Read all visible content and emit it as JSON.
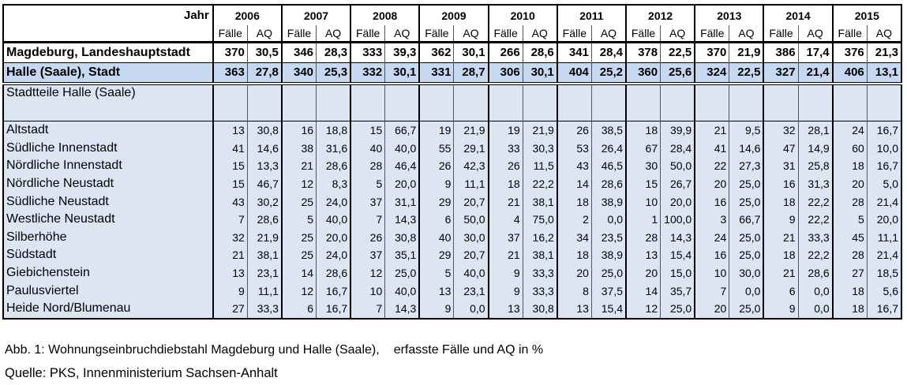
{
  "header": {
    "jahr_label": "Jahr",
    "years": [
      "2006",
      "2007",
      "2008",
      "2009",
      "2010",
      "2011",
      "2012",
      "2013",
      "2014",
      "2015"
    ],
    "sub_faelle": "Fälle",
    "sub_aq": "AQ"
  },
  "cities": [
    {
      "name": "Magdeburg, Landeshauptstadt",
      "values": [
        [
          "370",
          "30,5"
        ],
        [
          "346",
          "28,3"
        ],
        [
          "333",
          "39,3"
        ],
        [
          "362",
          "30,1"
        ],
        [
          "266",
          "28,6"
        ],
        [
          "341",
          "28,4"
        ],
        [
          "378",
          "22,5"
        ],
        [
          "370",
          "21,9"
        ],
        [
          "386",
          "17,4"
        ],
        [
          "376",
          "21,3"
        ]
      ]
    },
    {
      "name": "Halle (Saale), Stadt",
      "values": [
        [
          "363",
          "27,8"
        ],
        [
          "340",
          "25,3"
        ],
        [
          "332",
          "30,1"
        ],
        [
          "331",
          "28,7"
        ],
        [
          "306",
          "30,1"
        ],
        [
          "404",
          "25,2"
        ],
        [
          "360",
          "25,6"
        ],
        [
          "324",
          "22,5"
        ],
        [
          "327",
          "21,4"
        ],
        [
          "406",
          "13,1"
        ]
      ]
    }
  ],
  "section_title": "Stadtteile Halle (Saale)",
  "districts": [
    {
      "name": "Altstadt",
      "values": [
        [
          "13",
          "30,8"
        ],
        [
          "16",
          "18,8"
        ],
        [
          "15",
          "66,7"
        ],
        [
          "19",
          "21,9"
        ],
        [
          "19",
          "21,9"
        ],
        [
          "26",
          "38,5"
        ],
        [
          "18",
          "39,9"
        ],
        [
          "21",
          "9,5"
        ],
        [
          "32",
          "28,1"
        ],
        [
          "24",
          "16,7"
        ]
      ]
    },
    {
      "name": "Südliche Innenstadt",
      "values": [
        [
          "41",
          "14,6"
        ],
        [
          "38",
          "31,6"
        ],
        [
          "40",
          "40,0"
        ],
        [
          "55",
          "29,1"
        ],
        [
          "33",
          "30,3"
        ],
        [
          "53",
          "26,4"
        ],
        [
          "67",
          "28,4"
        ],
        [
          "41",
          "14,6"
        ],
        [
          "47",
          "14,9"
        ],
        [
          "60",
          "10,0"
        ]
      ]
    },
    {
      "name": "Nördliche Innenstadt",
      "values": [
        [
          "15",
          "13,3"
        ],
        [
          "21",
          "28,6"
        ],
        [
          "28",
          "46,4"
        ],
        [
          "26",
          "42,3"
        ],
        [
          "26",
          "11,5"
        ],
        [
          "43",
          "46,5"
        ],
        [
          "30",
          "50,0"
        ],
        [
          "22",
          "27,3"
        ],
        [
          "31",
          "25,8"
        ],
        [
          "18",
          "16,7"
        ]
      ]
    },
    {
      "name": "Nördliche Neustadt",
      "values": [
        [
          "15",
          "46,7"
        ],
        [
          "12",
          "8,3"
        ],
        [
          "5",
          "20,0"
        ],
        [
          "9",
          "11,1"
        ],
        [
          "18",
          "22,2"
        ],
        [
          "14",
          "28,6"
        ],
        [
          "15",
          "26,7"
        ],
        [
          "20",
          "25,0"
        ],
        [
          "16",
          "31,3"
        ],
        [
          "20",
          "5,0"
        ]
      ]
    },
    {
      "name": "Südliche Neustadt",
      "values": [
        [
          "43",
          "30,2"
        ],
        [
          "25",
          "24,0"
        ],
        [
          "37",
          "31,1"
        ],
        [
          "29",
          "20,7"
        ],
        [
          "21",
          "38,1"
        ],
        [
          "18",
          "38,9"
        ],
        [
          "10",
          "20,0"
        ],
        [
          "16",
          "25,0"
        ],
        [
          "18",
          "22,2"
        ],
        [
          "28",
          "21,4"
        ]
      ]
    },
    {
      "name": "Westliche Neustadt",
      "values": [
        [
          "7",
          "28,6"
        ],
        [
          "5",
          "40,0"
        ],
        [
          "7",
          "14,3"
        ],
        [
          "6",
          "50,0"
        ],
        [
          "4",
          "75,0"
        ],
        [
          "2",
          "0,0"
        ],
        [
          "1",
          "100,0"
        ],
        [
          "3",
          "66,7"
        ],
        [
          "9",
          "22,2"
        ],
        [
          "5",
          "20,0"
        ]
      ]
    },
    {
      "name": "Silberhöhe",
      "values": [
        [
          "32",
          "21,9"
        ],
        [
          "25",
          "20,0"
        ],
        [
          "26",
          "30,8"
        ],
        [
          "40",
          "30,0"
        ],
        [
          "37",
          "16,2"
        ],
        [
          "34",
          "23,5"
        ],
        [
          "28",
          "14,3"
        ],
        [
          "24",
          "25,0"
        ],
        [
          "21",
          "33,3"
        ],
        [
          "45",
          "11,1"
        ]
      ]
    },
    {
      "name": "Südstadt",
      "values": [
        [
          "21",
          "38,1"
        ],
        [
          "25",
          "24,0"
        ],
        [
          "37",
          "35,1"
        ],
        [
          "29",
          "20,7"
        ],
        [
          "21",
          "38,1"
        ],
        [
          "18",
          "38,9"
        ],
        [
          "13",
          "15,4"
        ],
        [
          "16",
          "25,0"
        ],
        [
          "18",
          "22,2"
        ],
        [
          "28",
          "21,4"
        ]
      ]
    },
    {
      "name": "Giebichenstein",
      "values": [
        [
          "13",
          "23,1"
        ],
        [
          "14",
          "28,6"
        ],
        [
          "12",
          "25,0"
        ],
        [
          "5",
          "40,0"
        ],
        [
          "9",
          "33,3"
        ],
        [
          "20",
          "25,0"
        ],
        [
          "20",
          "15,0"
        ],
        [
          "10",
          "30,0"
        ],
        [
          "21",
          "28,6"
        ],
        [
          "27",
          "18,5"
        ]
      ]
    },
    {
      "name": "Paulusviertel",
      "values": [
        [
          "9",
          "11,1"
        ],
        [
          "12",
          "16,7"
        ],
        [
          "10",
          "40,0"
        ],
        [
          "13",
          "23,1"
        ],
        [
          "9",
          "33,3"
        ],
        [
          "8",
          "37,5"
        ],
        [
          "14",
          "35,7"
        ],
        [
          "7",
          "0,0"
        ],
        [
          "6",
          "0,0"
        ],
        [
          "18",
          "5,6"
        ]
      ]
    },
    {
      "name": "Heide Nord/Blumenau",
      "values": [
        [
          "27",
          "33,3"
        ],
        [
          "6",
          "16,7"
        ],
        [
          "7",
          "14,3"
        ],
        [
          "9",
          "0,0"
        ],
        [
          "13",
          "30,8"
        ],
        [
          "13",
          "15,4"
        ],
        [
          "12",
          "25,0"
        ],
        [
          "20",
          "25,0"
        ],
        [
          "9",
          "0,0"
        ],
        [
          "18",
          "16,7"
        ]
      ]
    }
  ],
  "caption": {
    "part1": "Abb. 1: Wohnungseinbruchdiebstahl Magdeburg und Halle (Saale),",
    "part2": "erfasste Fälle und AQ in %"
  },
  "source": "Quelle: PKS, Innenministerium Sachsen-Anhalt",
  "colors": {
    "row_fill": "#dce6f2",
    "halle_fill": "#c6d9f1"
  }
}
